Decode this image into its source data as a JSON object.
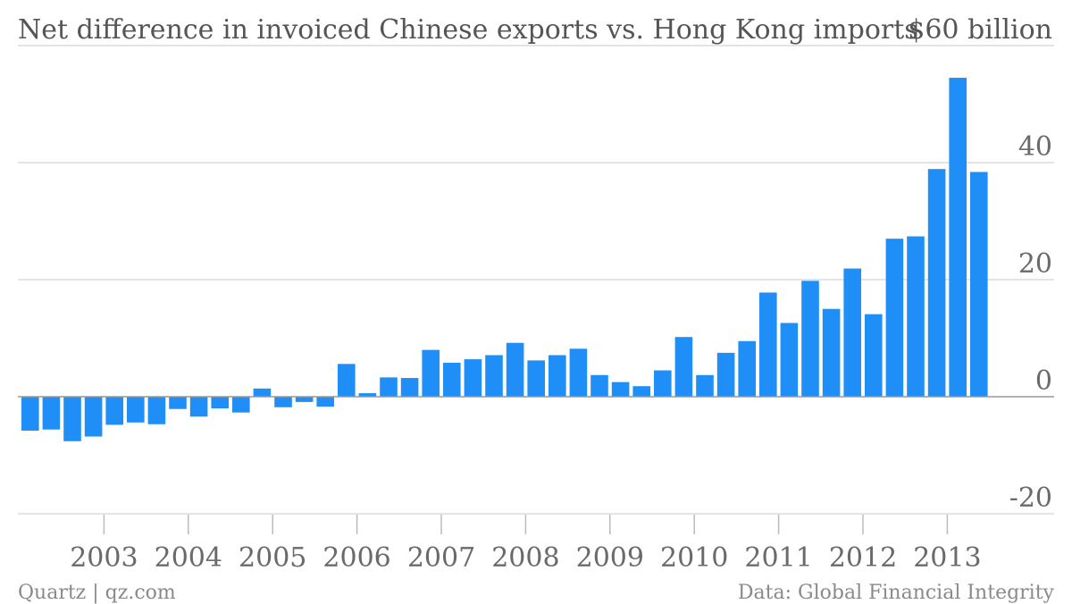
{
  "chart_data": {
    "type": "bar",
    "title": "Net difference in invoiced Chinese exports vs. Hong Kong imports",
    "unit_label": "$60 billion",
    "ylim": [
      -20,
      60
    ],
    "yticks": [
      {
        "value": 60,
        "label": "$60 billion"
      },
      {
        "value": 40,
        "label": "40"
      },
      {
        "value": 20,
        "label": "20"
      },
      {
        "value": 0,
        "label": "0"
      },
      {
        "value": -20,
        "label": "-20"
      }
    ],
    "x_tick_labels": [
      "2003",
      "2004",
      "2005",
      "2006",
      "2007",
      "2008",
      "2009",
      "2010",
      "2011",
      "2012",
      "2013"
    ],
    "x_tick_quarter_index": [
      3,
      7,
      11,
      15,
      19,
      23,
      27,
      31,
      35,
      39,
      43
    ],
    "grid": true,
    "color": "#1f8ff7",
    "categories": [
      "2002 Q1",
      "2002 Q2",
      "2002 Q3",
      "2002 Q4",
      "2003 Q1",
      "2003 Q2",
      "2003 Q3",
      "2003 Q4",
      "2004 Q1",
      "2004 Q2",
      "2004 Q3",
      "2004 Q4",
      "2005 Q1",
      "2005 Q2",
      "2005 Q3",
      "2005 Q4",
      "2006 Q1",
      "2006 Q2",
      "2006 Q3",
      "2006 Q4",
      "2007 Q1",
      "2007 Q2",
      "2007 Q3",
      "2007 Q4",
      "2008 Q1",
      "2008 Q2",
      "2008 Q3",
      "2008 Q4",
      "2009 Q1",
      "2009 Q2",
      "2009 Q3",
      "2009 Q4",
      "2010 Q1",
      "2010 Q2",
      "2010 Q3",
      "2010 Q4",
      "2011 Q1",
      "2011 Q2",
      "2011 Q3",
      "2011 Q4",
      "2012 Q1",
      "2012 Q2",
      "2012 Q3",
      "2012 Q4",
      "2013 Q1",
      "2013 Q2"
    ],
    "values": [
      -5.8,
      -5.6,
      -7.6,
      -6.8,
      -4.8,
      -4.4,
      -4.7,
      -2.1,
      -3.4,
      -2.0,
      -2.7,
      1.4,
      -1.8,
      -0.9,
      -1.7,
      5.6,
      0.6,
      3.3,
      3.2,
      8.0,
      5.8,
      6.4,
      7.1,
      9.2,
      6.2,
      7.1,
      8.2,
      3.7,
      2.5,
      1.8,
      4.5,
      10.2,
      3.7,
      7.5,
      9.5,
      17.8,
      12.6,
      19.8,
      15.0,
      21.9,
      14.1,
      27.0,
      27.4,
      38.9,
      54.5,
      38.4
    ]
  },
  "footer": {
    "source_left": "Quartz | qz.com",
    "source_right": "Data: Global Financial Integrity"
  }
}
